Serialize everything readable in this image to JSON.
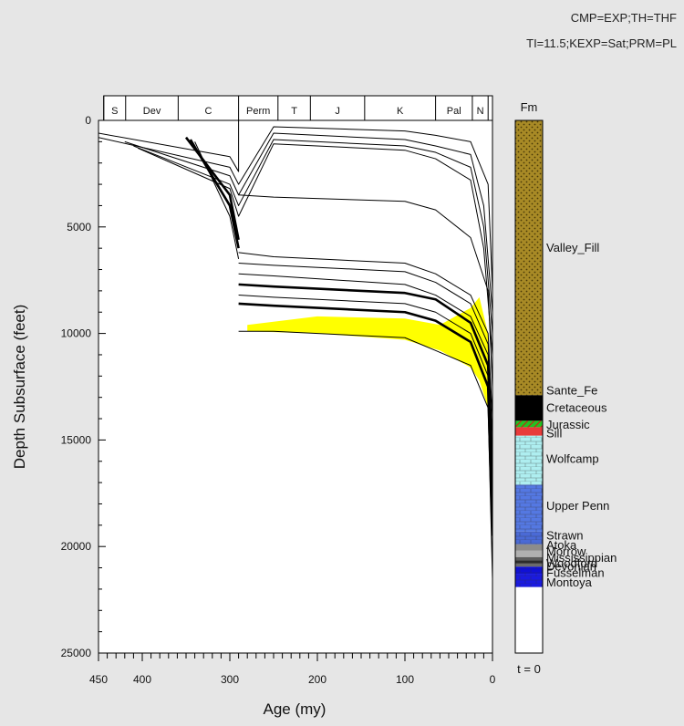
{
  "header": {
    "line1": "CMP=EXP;TH=THF",
    "line2": "TI=11.5;KEXP=Sat;PRM=PL"
  },
  "chart_data": {
    "type": "line",
    "xlabel": "Age (my)",
    "ylabel": "Depth Subsurface (feet)",
    "xlim": [
      450,
      0
    ],
    "ylim": [
      0,
      25000
    ],
    "x_ticks": [
      "450",
      "400",
      "300",
      "200",
      "100",
      "0"
    ],
    "x_tick_values": [
      450,
      400,
      300,
      200,
      100,
      0
    ],
    "y_ticks": [
      "0",
      "5000",
      "10000",
      "15000",
      "20000",
      "25000"
    ],
    "y_tick_values": [
      0,
      5000,
      10000,
      15000,
      20000,
      25000
    ],
    "periods": [
      {
        "label": "S",
        "from": 444,
        "to": 419
      },
      {
        "label": "Dev",
        "from": 419,
        "to": 359
      },
      {
        "label": "C",
        "from": 359,
        "to": 290
      },
      {
        "label": "Perm",
        "from": 290,
        "to": 245
      },
      {
        "label": "T",
        "from": 245,
        "to": 208
      },
      {
        "label": "J",
        "from": 208,
        "to": 146
      },
      {
        "label": "K",
        "from": 146,
        "to": 65
      },
      {
        "label": "Pal",
        "from": 65,
        "to": 23
      },
      {
        "label": "N",
        "from": 23,
        "to": 5
      },
      {
        "label": "",
        "from": 5,
        "to": 0
      }
    ],
    "burial_curves": [
      {
        "x": [
          450,
          300,
          290,
          290,
          0
        ],
        "y": [
          600,
          1700,
          2400,
          0,
          0
        ],
        "bold": false
      },
      {
        "x": [
          450,
          300,
          290,
          250,
          100,
          65,
          25,
          5,
          0
        ],
        "y": [
          800,
          2200,
          3000,
          300,
          500,
          700,
          1000,
          3000,
          8000
        ],
        "bold": false
      },
      {
        "x": [
          420,
          300,
          290,
          250,
          100,
          65,
          25,
          10,
          0
        ],
        "y": [
          1000,
          2600,
          3500,
          600,
          900,
          1200,
          1600,
          4000,
          9000
        ],
        "bold": false
      },
      {
        "x": [
          410,
          300,
          290,
          250,
          100,
          65,
          25,
          10,
          0
        ],
        "y": [
          1200,
          3000,
          4000,
          900,
          1200,
          1500,
          2200,
          5000,
          10000
        ],
        "bold": false
      },
      {
        "x": [
          405,
          300,
          290,
          250,
          100,
          65,
          25,
          10,
          0
        ],
        "y": [
          1300,
          3200,
          4500,
          1100,
          1400,
          1800,
          2800,
          6000,
          11000
        ],
        "bold": false
      },
      {
        "x": [
          350,
          300,
          290
        ],
        "y": [
          800,
          3500,
          5600
        ],
        "bold": true
      },
      {
        "x": [
          345,
          300,
          290
        ],
        "y": [
          900,
          4000,
          6000
        ],
        "bold": true
      },
      {
        "x": [
          340,
          300,
          290
        ],
        "y": [
          1000,
          4500,
          6500
        ],
        "bold": false
      },
      {
        "x": [
          290,
          250,
          100,
          65,
          25,
          5,
          0
        ],
        "y": [
          3500,
          3600,
          3800,
          4200,
          5500,
          8000,
          12500
        ],
        "bold": false
      },
      {
        "x": [
          290,
          250,
          100,
          65,
          25,
          5,
          0
        ],
        "y": [
          6200,
          6400,
          6700,
          7200,
          8200,
          10000,
          14000
        ],
        "bold": false
      },
      {
        "x": [
          290,
          250,
          100,
          65,
          25,
          5,
          0
        ],
        "y": [
          6700,
          6800,
          7100,
          7600,
          8600,
          10500,
          15000
        ],
        "bold": false
      },
      {
        "x": [
          290,
          250,
          100,
          65,
          25,
          5,
          0
        ],
        "y": [
          7200,
          7300,
          7700,
          8200,
          9200,
          11000,
          16000
        ],
        "bold": false
      },
      {
        "x": [
          290,
          250,
          100,
          65,
          25,
          5,
          0
        ],
        "y": [
          7700,
          7800,
          8100,
          8400,
          9500,
          11500,
          17000
        ],
        "bold": true
      },
      {
        "x": [
          290,
          250,
          100,
          65,
          25,
          5,
          0
        ],
        "y": [
          8200,
          8300,
          8600,
          9000,
          10000,
          12000,
          18500
        ],
        "bold": false
      },
      {
        "x": [
          290,
          250,
          100,
          65,
          25,
          5,
          0
        ],
        "y": [
          8600,
          8700,
          9000,
          9400,
          10400,
          12500,
          19500
        ],
        "bold": true
      },
      {
        "x": [
          290,
          250,
          100,
          65,
          25,
          5,
          0
        ],
        "y": [
          9900,
          9900,
          10200,
          10800,
          11500,
          13500,
          21500
        ],
        "bold": false
      }
    ],
    "shaded_window": {
      "color": "#ffff00",
      "upper": {
        "x": [
          280,
          200,
          100,
          60,
          25,
          15,
          5
        ],
        "y": [
          9600,
          9200,
          9300,
          9600,
          8800,
          8300,
          10000
        ]
      },
      "lower": {
        "x": [
          5,
          15,
          25,
          60,
          100,
          200,
          280
        ],
        "y": [
          13500,
          12200,
          11600,
          10800,
          10300,
          10000,
          9900
        ]
      }
    },
    "column_header": "Fm",
    "column_footer": "t = 0",
    "column_ylim": [
      0,
      25000
    ],
    "formations": [
      {
        "name": "Valley_Fill",
        "top": 0,
        "bottom": 12800,
        "color": "#a88a26",
        "pattern": "dots"
      },
      {
        "name": "Sante_Fe",
        "top": 12800,
        "bottom": 12900,
        "color": "#a88a26",
        "pattern": "dots"
      },
      {
        "name": "Cretaceous",
        "top": 12900,
        "bottom": 14100,
        "color": "#000000",
        "pattern": "none"
      },
      {
        "name": "Jurassic",
        "top": 14100,
        "bottom": 14400,
        "color": "#22c322",
        "pattern": "hatch"
      },
      {
        "name": "Sill",
        "top": 14400,
        "bottom": 14800,
        "color": "#e83b3b",
        "pattern": "none"
      },
      {
        "name": "Wolfcamp",
        "top": 14800,
        "bottom": 17100,
        "color": "#aeeef0",
        "pattern": "brick"
      },
      {
        "name": "Upper Penn",
        "top": 17100,
        "bottom": 19300,
        "color": "#5478e2",
        "pattern": "brick"
      },
      {
        "name": "Strawn",
        "top": 19300,
        "bottom": 19900,
        "color": "#4a6ad6",
        "pattern": "brick"
      },
      {
        "name": "Atoka",
        "top": 19900,
        "bottom": 20200,
        "color": "#8c8c8c",
        "pattern": "none"
      },
      {
        "name": "Morrow",
        "top": 20200,
        "bottom": 20500,
        "color": "#b0b0b0",
        "pattern": "none"
      },
      {
        "name": "Mississippian",
        "top": 20500,
        "bottom": 20650,
        "color": "#5d5d5d",
        "pattern": "none"
      },
      {
        "name": "Woodford",
        "top": 20650,
        "bottom": 20800,
        "color": "#2c2c2c",
        "pattern": "none"
      },
      {
        "name": "Devonian",
        "top": 20800,
        "bottom": 20950,
        "color": "#6b6b6b",
        "pattern": "none"
      },
      {
        "name": "Fusselman",
        "top": 20950,
        "bottom": 21300,
        "color": "#1010d6",
        "pattern": "brick"
      },
      {
        "name": "Montoya",
        "top": 21300,
        "bottom": 21900,
        "color": "#1a1ae0",
        "pattern": "brick"
      }
    ],
    "column_labels": [
      {
        "text": "Valley_Fill",
        "depth": 6000
      },
      {
        "text": "Sante_Fe",
        "depth": 12700
      },
      {
        "text": "Cretaceous",
        "depth": 13500
      },
      {
        "text": "Jurassic",
        "depth": 14300
      },
      {
        "text": "Sill",
        "depth": 14700
      },
      {
        "text": "Wolfcamp",
        "depth": 15900
      },
      {
        "text": "Upper Penn",
        "depth": 18100
      },
      {
        "text": "Strawn",
        "depth": 19500
      },
      {
        "text": "Atoka",
        "depth": 19950
      },
      {
        "text": "Morrow",
        "depth": 20250
      },
      {
        "text": "Mississippian",
        "depth": 20550
      },
      {
        "text": "Woodford",
        "depth": 20800
      },
      {
        "text": "Devonian",
        "depth": 20950
      },
      {
        "text": "Fusselman",
        "depth": 21250
      },
      {
        "text": "Montoya",
        "depth": 21700
      }
    ]
  }
}
